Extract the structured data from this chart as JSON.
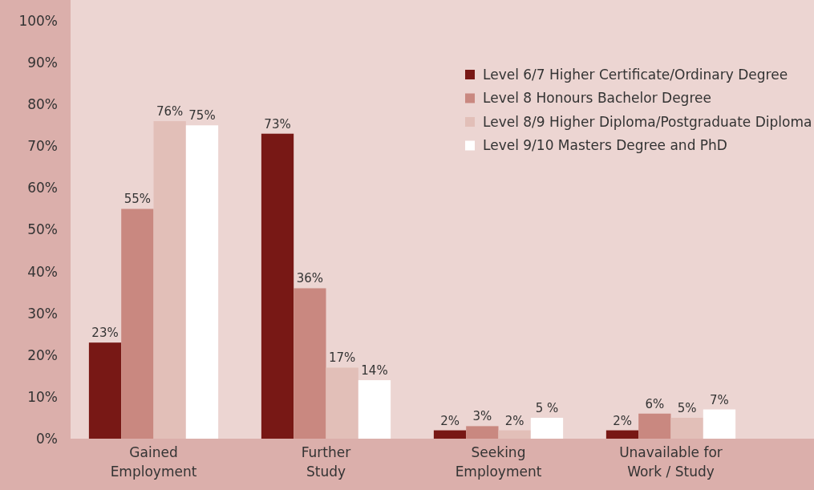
{
  "chart_data": {
    "type": "bar",
    "categories": [
      "Gained\nEmployment",
      "Further\nStudy",
      "Seeking\nEmployment",
      "Unavailable for\nWork / Study"
    ],
    "series": [
      {
        "name": "Level 6/7 Higher Certificate/Ordinary Degree",
        "color": "#781815",
        "values": [
          23,
          73,
          2,
          2
        ],
        "value_labels": [
          "23%",
          "73%",
          "2%",
          "2%"
        ]
      },
      {
        "name": "Level 8 Honours Bachelor Degree",
        "color": "#c98880",
        "values": [
          55,
          36,
          3,
          6
        ],
        "value_labels": [
          "55%",
          "36%",
          "3%",
          "6%"
        ]
      },
      {
        "name": "Level 8/9 Higher Diploma/Postgraduate Diploma",
        "color": "#e2bfb8",
        "values": [
          76,
          17,
          2,
          5
        ],
        "value_labels": [
          "76%",
          "17%",
          "2%",
          "5%"
        ]
      },
      {
        "name": "Level 9/10 Masters Degree and PhD",
        "color": "#ffffff",
        "values": [
          75,
          14,
          5,
          7
        ],
        "value_labels": [
          "75%",
          "14%",
          "5 %",
          "7%"
        ]
      }
    ],
    "ylim": [
      0,
      105
    ],
    "yticks": [
      {
        "value": 0,
        "label": "0%"
      },
      {
        "value": 10,
        "label": "10%"
      },
      {
        "value": 20,
        "label": "20%"
      },
      {
        "value": 30,
        "label": "30%"
      },
      {
        "value": 40,
        "label": "40%"
      },
      {
        "value": 50,
        "label": "50%"
      },
      {
        "value": 60,
        "label": "60%"
      },
      {
        "value": 70,
        "label": "70%"
      },
      {
        "value": 80,
        "label": "80%"
      },
      {
        "value": 90,
        "label": "90%"
      },
      {
        "value": 100,
        "label": "100%"
      }
    ],
    "grid": false,
    "legend": "top right"
  }
}
